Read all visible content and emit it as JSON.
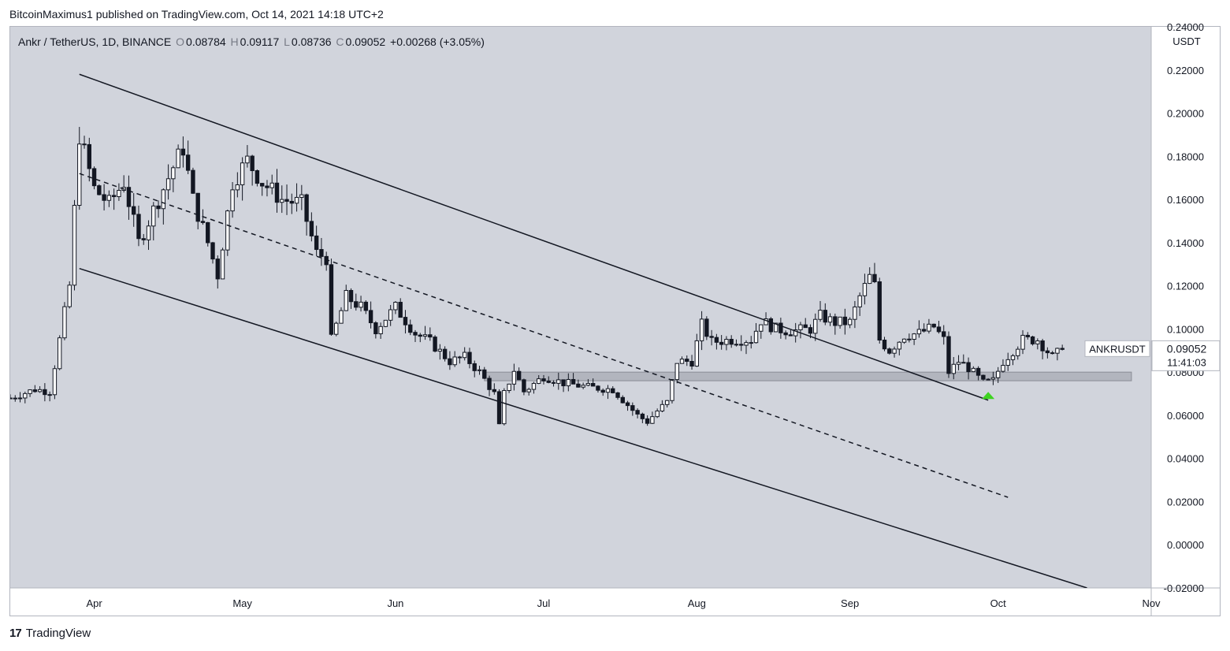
{
  "header": {
    "publisher": "BitcoinMaximus1 published on TradingView.com, Oct 14, 2021 14:18 UTC+2"
  },
  "legend": {
    "symbol": "Ankr / TetherUS, 1D, BINANCE",
    "o_key": "O",
    "o": "0.08784",
    "h_key": "H",
    "h": "0.09117",
    "l_key": "L",
    "l": "0.08736",
    "c_key": "C",
    "c": "0.09052",
    "change": "+0.00268 (+3.05%)"
  },
  "price_label": {
    "ticker": "ANKRUSDT",
    "price": "0.09052",
    "countdown": "11:41:03"
  },
  "footer": {
    "brand": "TradingView",
    "logo_glyph": "17"
  },
  "colors": {
    "background": "#d1d4dc",
    "candle_up": "#ffffff",
    "candle_down": "#131722",
    "support_zone": "#b2b5be",
    "arrow": "#3ed321"
  },
  "chart_data": {
    "type": "candlestick",
    "title": "Ankr / TetherUS, 1D, BINANCE",
    "y_unit": "USDT",
    "ylim": [
      -0.02,
      0.24
    ],
    "y_ticks": [
      "0.24000",
      "0.22000",
      "0.20000",
      "0.18000",
      "0.16000",
      "0.14000",
      "0.12000",
      "0.10000",
      "0.08000",
      "0.06000",
      "0.04000",
      "0.02000",
      "0.00000",
      "-0.02000"
    ],
    "x_ticks": [
      "Apr",
      "May",
      "Jun",
      "Jul",
      "Aug",
      "Sep",
      "Oct",
      "Nov"
    ],
    "x_tick_dates": [
      "2021-04-01",
      "2021-05-01",
      "2021-06-01",
      "2021-07-01",
      "2021-08-01",
      "2021-09-01",
      "2021-10-01",
      "2021-11-01"
    ],
    "x_range": [
      "2021-03-15",
      "2021-11-01"
    ],
    "anchors": [
      [
        "2021-03-15",
        0.068
      ],
      [
        "2021-03-20",
        0.072
      ],
      [
        "2021-03-23",
        0.071
      ],
      [
        "2021-03-25",
        0.095
      ],
      [
        "2021-03-27",
        0.12
      ],
      [
        "2021-03-29",
        0.19
      ],
      [
        "2021-04-01",
        0.165
      ],
      [
        "2021-04-04",
        0.158
      ],
      [
        "2021-04-07",
        0.168
      ],
      [
        "2021-04-10",
        0.14
      ],
      [
        "2021-04-13",
        0.155
      ],
      [
        "2021-04-17",
        0.175
      ],
      [
        "2021-04-19",
        0.184
      ],
      [
        "2021-04-21",
        0.16
      ],
      [
        "2021-04-24",
        0.14
      ],
      [
        "2021-04-26",
        0.125
      ],
      [
        "2021-04-29",
        0.168
      ],
      [
        "2021-05-02",
        0.178
      ],
      [
        "2021-05-05",
        0.168
      ],
      [
        "2021-05-09",
        0.16
      ],
      [
        "2021-05-13",
        0.158
      ],
      [
        "2021-05-16",
        0.135
      ],
      [
        "2021-05-18",
        0.133
      ],
      [
        "2021-05-19",
        0.095
      ],
      [
        "2021-05-22",
        0.115
      ],
      [
        "2021-05-25",
        0.11
      ],
      [
        "2021-05-28",
        0.1
      ],
      [
        "2021-06-01",
        0.11
      ],
      [
        "2021-06-05",
        0.098
      ],
      [
        "2021-06-08",
        0.094
      ],
      [
        "2021-06-12",
        0.085
      ],
      [
        "2021-06-15",
        0.087
      ],
      [
        "2021-06-18",
        0.08
      ],
      [
        "2021-06-21",
        0.07
      ],
      [
        "2021-06-22",
        0.055
      ],
      [
        "2021-06-23",
        0.07
      ],
      [
        "2021-06-25",
        0.081
      ],
      [
        "2021-06-27",
        0.071
      ],
      [
        "2021-07-01",
        0.078
      ],
      [
        "2021-07-05",
        0.075
      ],
      [
        "2021-07-10",
        0.073
      ],
      [
        "2021-07-15",
        0.072
      ],
      [
        "2021-07-20",
        0.06
      ],
      [
        "2021-07-22",
        0.057
      ],
      [
        "2021-07-24",
        0.062
      ],
      [
        "2021-07-26",
        0.066
      ],
      [
        "2021-07-28",
        0.085
      ],
      [
        "2021-07-31",
        0.085
      ],
      [
        "2021-08-02",
        0.102
      ],
      [
        "2021-08-04",
        0.094
      ],
      [
        "2021-08-08",
        0.095
      ],
      [
        "2021-08-12",
        0.095
      ],
      [
        "2021-08-14",
        0.104
      ],
      [
        "2021-08-17",
        0.1
      ],
      [
        "2021-08-20",
        0.099
      ],
      [
        "2021-08-24",
        0.1
      ],
      [
        "2021-08-26",
        0.106
      ],
      [
        "2021-08-29",
        0.103
      ],
      [
        "2021-09-01",
        0.103
      ],
      [
        "2021-09-03",
        0.115
      ],
      [
        "2021-09-05",
        0.124
      ],
      [
        "2021-09-06",
        0.12
      ],
      [
        "2021-09-07",
        0.095
      ],
      [
        "2021-09-09",
        0.09
      ],
      [
        "2021-09-12",
        0.097
      ],
      [
        "2021-09-15",
        0.098
      ],
      [
        "2021-09-18",
        0.101
      ],
      [
        "2021-09-20",
        0.095
      ],
      [
        "2021-09-21",
        0.08
      ],
      [
        "2021-09-23",
        0.085
      ],
      [
        "2021-09-25",
        0.082
      ],
      [
        "2021-09-28",
        0.075
      ],
      [
        "2021-09-30",
        0.076
      ],
      [
        "2021-10-02",
        0.085
      ],
      [
        "2021-10-06",
        0.095
      ],
      [
        "2021-10-09",
        0.095
      ],
      [
        "2021-10-12",
        0.087
      ],
      [
        "2021-10-14",
        0.0905
      ]
    ],
    "trendlines": [
      {
        "style": "solid",
        "from": [
          "2021-03-29",
          0.218
        ],
        "to": [
          "2021-09-29",
          0.067
        ]
      },
      {
        "style": "dashed",
        "from": [
          "2021-03-29",
          0.172
        ],
        "to": [
          "2021-10-03",
          0.022
        ]
      },
      {
        "style": "solid",
        "from": [
          "2021-03-29",
          0.128
        ],
        "to": [
          "2021-10-19",
          -0.02
        ]
      }
    ],
    "support_zone": {
      "from": "2021-06-19",
      "to": "2021-10-28",
      "low": 0.076,
      "high": 0.08
    },
    "arrow": {
      "date": "2021-09-29",
      "value": 0.069
    }
  }
}
